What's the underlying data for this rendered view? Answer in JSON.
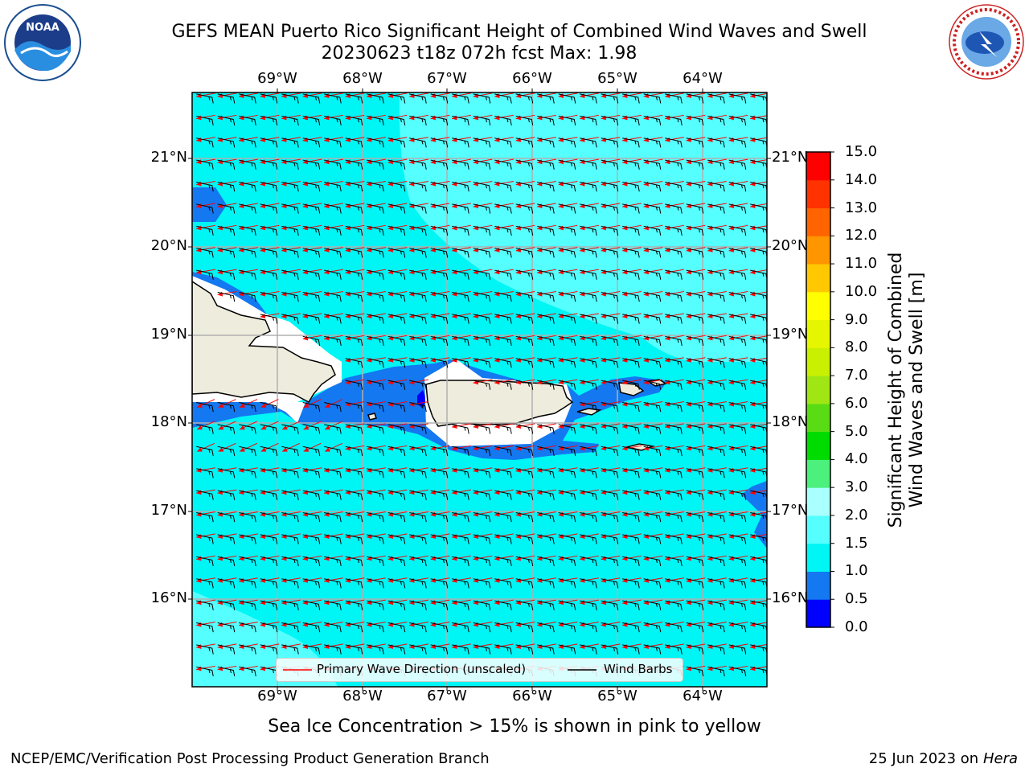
{
  "title_line1": "GEFS MEAN Puerto Rico Significant Height of Combined Wind Waves and Swell",
  "title_line2": "20230623 t18z 072h fcst   Max: 1.98",
  "logos": {
    "left": "NOAA",
    "right": "NATIONAL WEATHER SERVICE"
  },
  "map": {
    "lon_labels": [
      "69°W",
      "68°W",
      "67°W",
      "66°W",
      "65°W",
      "64°W"
    ],
    "lat_labels": [
      "21°N",
      "20°N",
      "19°N",
      "18°N",
      "17°N",
      "16°N"
    ],
    "colors": {
      "ocean_1_1_5": "#00f5f5",
      "ocean_1_5_2": "#55ffff",
      "ocean_2_3": "#aaffff",
      "ocean_0_5_1": "#1478f0",
      "ocean_0_0_5": "#0000ff",
      "land": "#eeecdc",
      "wave_arrow": "#ff0000",
      "wind_barb": "#000000"
    }
  },
  "legend": {
    "wave_label": "Primary Wave Direction (unscaled)",
    "barb_label": "Wind Barbs"
  },
  "colorbar": {
    "title_line1": "Significant Height of Combined",
    "title_line2": "Wind Waves and Swell [m]",
    "ticks": [
      "0.0",
      "0.5",
      "1.0",
      "1.5",
      "2.0",
      "3.0",
      "4.0",
      "5.0",
      "6.0",
      "7.0",
      "8.0",
      "9.0",
      "10.0",
      "11.0",
      "12.0",
      "13.0",
      "14.0",
      "15.0"
    ],
    "colors": [
      "#0000ff",
      "#1478f0",
      "#00f5f5",
      "#55ffff",
      "#aaffff",
      "#4cf07c",
      "#00dc00",
      "#5adc14",
      "#a0e614",
      "#c8f000",
      "#e6f500",
      "#ffff00",
      "#ffc800",
      "#ff9600",
      "#ff6400",
      "#ff3200",
      "#ff0000"
    ]
  },
  "footer": {
    "note": "Sea Ice Concentration > 15% is shown in pink to yellow",
    "left": "NCEP/EMC/Verification Post Processing Product Generation Branch",
    "right_date": "25 Jun 2023 on",
    "right_host": "Hera"
  }
}
